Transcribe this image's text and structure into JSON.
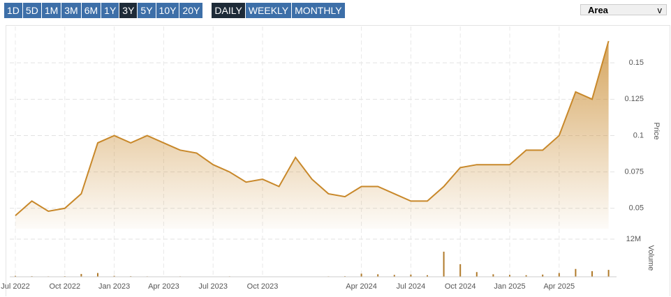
{
  "toolbar": {
    "ranges": [
      "1D",
      "5D",
      "1M",
      "3M",
      "6M",
      "1Y",
      "3Y",
      "5Y",
      "10Y",
      "20Y"
    ],
    "active_range": "3Y",
    "intervals": [
      "DAILY",
      "WEEKLY",
      "MONTHLY"
    ],
    "active_interval": "DAILY",
    "chart_style": "Area",
    "dropdown_arrow": "v"
  },
  "chart_data": {
    "type": "area",
    "color": "#c8882a",
    "grid": true,
    "y_label": "Price",
    "y2_label": "Volume",
    "x": [
      "2022-07",
      "2022-08",
      "2022-09",
      "2022-10",
      "2022-11",
      "2022-12",
      "2023-01",
      "2023-02",
      "2023-03",
      "2023-04",
      "2023-05",
      "2023-06",
      "2023-07",
      "2023-08",
      "2023-09",
      "2023-10",
      "2023-11",
      "2023-12",
      "2024-01",
      "2024-02",
      "2024-03",
      "2024-04",
      "2024-05",
      "2024-06",
      "2024-07",
      "2024-08",
      "2024-09",
      "2024-10",
      "2024-11",
      "2024-12",
      "2025-01",
      "2025-02",
      "2025-03",
      "2025-04",
      "2025-05",
      "2025-06",
      "2025-07"
    ],
    "xticks": [
      {
        "value": "2022-07",
        "label": "Jul 2022"
      },
      {
        "value": "2022-10",
        "label": "Oct 2022"
      },
      {
        "value": "2023-01",
        "label": "Jan 2023"
      },
      {
        "value": "2023-04",
        "label": "Apr 2023"
      },
      {
        "value": "2023-07",
        "label": "Jul 2023"
      },
      {
        "value": "2023-10",
        "label": "Oct 2023"
      },
      {
        "value": "2024-04",
        "label": "Apr 2024"
      },
      {
        "value": "2024-07",
        "label": "Jul 2024"
      },
      {
        "value": "2024-10",
        "label": "Oct 2024"
      },
      {
        "value": "2025-01",
        "label": "Jan 2025"
      },
      {
        "value": "2025-04",
        "label": "Apr 2025"
      }
    ],
    "ylim": [
      0.036,
      0.175
    ],
    "yticks": [
      0.05,
      0.075,
      0.1,
      0.125,
      0.15
    ],
    "y2lim": [
      0,
      12000000
    ],
    "y2ticks": [
      {
        "value": 12000000,
        "label": "12M"
      }
    ],
    "series": [
      {
        "name": "Price",
        "color": "#c8882a",
        "values": [
          0.045,
          0.055,
          0.048,
          0.05,
          0.06,
          0.095,
          0.1,
          0.095,
          0.1,
          0.095,
          0.09,
          0.088,
          0.08,
          0.075,
          0.068,
          0.07,
          0.065,
          0.085,
          0.07,
          0.06,
          0.058,
          0.065,
          0.065,
          0.06,
          0.055,
          0.055,
          0.065,
          0.078,
          0.08,
          0.08,
          0.08,
          0.09,
          0.09,
          0.1,
          0.13,
          0.125,
          0.165
        ]
      },
      {
        "name": "Volume",
        "color": "#b07a2a",
        "axis": "y2",
        "values": [
          300000,
          200000,
          150000,
          200000,
          900000,
          1200000,
          300000,
          200000,
          150000,
          100000,
          150000,
          100000,
          100000,
          150000,
          100000,
          100000,
          100000,
          100000,
          100000,
          150000,
          200000,
          1000000,
          800000,
          600000,
          700000,
          500000,
          8000000,
          4000000,
          1500000,
          800000,
          600000,
          500000,
          700000,
          1200000,
          2500000,
          1800000,
          2200000
        ]
      }
    ]
  }
}
